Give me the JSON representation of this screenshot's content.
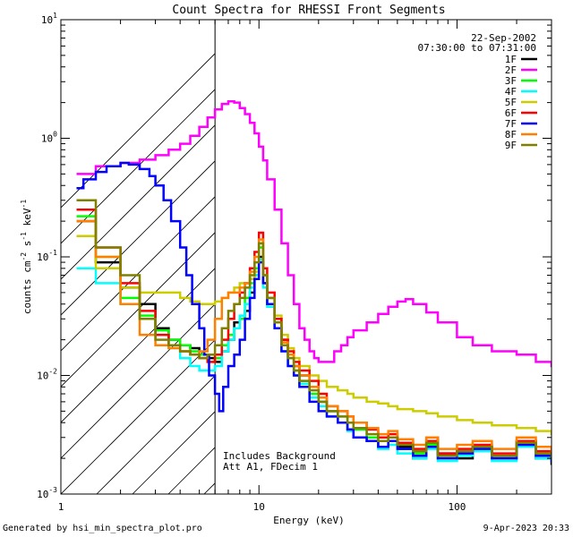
{
  "chart_data": {
    "type": "line",
    "title": "Count Spectra for RHESSI Front Segments",
    "xlabel": "Energy (keV)",
    "ylabel_parts": {
      "a": "counts cm",
      "b": "-2",
      "c": " s",
      "d": "-1",
      "e": " keV",
      "f": "-1"
    },
    "xlim": [
      1,
      300
    ],
    "ylim": [
      0.001,
      10
    ],
    "x_scale": "log",
    "y_scale": "log",
    "x_ticks": [
      {
        "v": 1,
        "label": "1"
      },
      {
        "v": 10,
        "label": "10"
      },
      {
        "v": 100,
        "label": "100"
      }
    ],
    "y_ticks": [
      {
        "v": 0.001,
        "base": "10",
        "exp": "-3"
      },
      {
        "v": 0.01,
        "base": "10",
        "exp": "-2"
      },
      {
        "v": 0.1,
        "base": "10",
        "exp": "-1"
      },
      {
        "v": 1,
        "base": "10",
        "exp": "0"
      },
      {
        "v": 10,
        "base": "10",
        "exp": "1"
      }
    ],
    "hatched_region": [
      1,
      6
    ],
    "date": "22-Sep-2002",
    "time_range": "07:30:00 to 07:31:00",
    "annotation": [
      "Includes Background",
      "Att A1, FDecim 1"
    ],
    "series": [
      {
        "name": "1F",
        "color": "#000000",
        "x": [
          1.2,
          1.5,
          2,
          2.5,
          3,
          3.5,
          4,
          4.5,
          5,
          5.5,
          6,
          6.5,
          7,
          7.5,
          8,
          8.5,
          9,
          9.5,
          10,
          10.5,
          11,
          12,
          13,
          14,
          15,
          16,
          18,
          20,
          22,
          25,
          28,
          30,
          35,
          40,
          45,
          50,
          60,
          70,
          80,
          100,
          120,
          150,
          200,
          250,
          300
        ],
        "y": [
          0.2,
          0.09,
          0.055,
          0.04,
          0.025,
          0.02,
          0.018,
          0.017,
          0.015,
          0.014,
          0.013,
          0.016,
          0.02,
          0.028,
          0.03,
          0.035,
          0.05,
          0.07,
          0.1,
          0.06,
          0.04,
          0.025,
          0.02,
          0.015,
          0.012,
          0.01,
          0.008,
          0.006,
          0.005,
          0.004,
          0.0035,
          0.003,
          0.0028,
          0.0025,
          0.003,
          0.0025,
          0.002,
          0.003,
          0.0022,
          0.002,
          0.0025,
          0.002,
          0.0028,
          0.002,
          0.0018
        ]
      },
      {
        "name": "2F",
        "color": "#ff00ff",
        "x": [
          1.2,
          1.5,
          2,
          2.5,
          3,
          3.5,
          4,
          4.5,
          5,
          5.5,
          6,
          6.5,
          7,
          7.5,
          8,
          8.5,
          9,
          9.5,
          10,
          10.5,
          11,
          12,
          13,
          14,
          15,
          16,
          17,
          18,
          19,
          20,
          22,
          24,
          26,
          28,
          30,
          35,
          40,
          45,
          50,
          55,
          60,
          70,
          80,
          100,
          120,
          150,
          200,
          250,
          300
        ],
        "y": [
          0.5,
          0.58,
          0.62,
          0.66,
          0.72,
          0.8,
          0.9,
          1.05,
          1.25,
          1.5,
          1.75,
          1.95,
          2.05,
          2.0,
          1.8,
          1.6,
          1.35,
          1.1,
          0.85,
          0.65,
          0.45,
          0.25,
          0.13,
          0.07,
          0.04,
          0.025,
          0.02,
          0.016,
          0.014,
          0.013,
          0.013,
          0.016,
          0.018,
          0.021,
          0.024,
          0.028,
          0.033,
          0.038,
          0.042,
          0.044,
          0.04,
          0.034,
          0.028,
          0.021,
          0.018,
          0.016,
          0.015,
          0.013,
          0.012
        ]
      },
      {
        "name": "3F",
        "color": "#00ff00",
        "x": [
          1.2,
          1.5,
          2,
          2.5,
          3,
          3.5,
          4,
          4.5,
          5,
          5.5,
          6,
          6.5,
          7,
          7.5,
          8,
          8.5,
          9,
          9.5,
          10,
          10.5,
          11,
          12,
          13,
          14,
          15,
          16,
          18,
          20,
          22,
          25,
          28,
          30,
          35,
          40,
          45,
          50,
          60,
          70,
          80,
          100,
          120,
          150,
          200,
          250,
          300
        ],
        "y": [
          0.22,
          0.1,
          0.045,
          0.032,
          0.024,
          0.02,
          0.018,
          0.016,
          0.015,
          0.013,
          0.014,
          0.018,
          0.022,
          0.025,
          0.03,
          0.045,
          0.06,
          0.08,
          0.12,
          0.07,
          0.045,
          0.03,
          0.018,
          0.014,
          0.011,
          0.009,
          0.007,
          0.006,
          0.005,
          0.0045,
          0.004,
          0.0035,
          0.003,
          0.0028,
          0.003,
          0.0024,
          0.0022,
          0.0026,
          0.002,
          0.0022,
          0.0024,
          0.002,
          0.0026,
          0.0022,
          0.002
        ]
      },
      {
        "name": "4F",
        "color": "#00ffff",
        "x": [
          1.2,
          1.5,
          2,
          2.5,
          3,
          3.5,
          4,
          4.5,
          5,
          5.5,
          6,
          6.5,
          7,
          7.5,
          8,
          8.5,
          9,
          9.5,
          10,
          10.5,
          11,
          12,
          13,
          14,
          15,
          16,
          18,
          20,
          22,
          25,
          28,
          30,
          35,
          40,
          45,
          50,
          60,
          70,
          80,
          100,
          120,
          150,
          200,
          250,
          300
        ],
        "y": [
          0.08,
          0.06,
          0.04,
          0.03,
          0.022,
          0.017,
          0.014,
          0.012,
          0.011,
          0.011,
          0.012,
          0.016,
          0.02,
          0.025,
          0.032,
          0.04,
          0.055,
          0.07,
          0.095,
          0.055,
          0.038,
          0.025,
          0.016,
          0.012,
          0.01,
          0.0085,
          0.0065,
          0.0055,
          0.0045,
          0.004,
          0.0034,
          0.003,
          0.0028,
          0.0024,
          0.0026,
          0.0022,
          0.002,
          0.0024,
          0.0019,
          0.0021,
          0.0023,
          0.0019,
          0.0025,
          0.002,
          0.0019
        ]
      },
      {
        "name": "5F",
        "color": "#cccc00",
        "x": [
          1.2,
          1.5,
          2,
          2.5,
          3,
          3.5,
          4,
          4.5,
          5,
          5.5,
          6,
          6.5,
          7,
          7.5,
          8,
          8.5,
          9,
          9.5,
          10,
          10.5,
          11,
          12,
          13,
          14,
          15,
          16,
          18,
          20,
          22,
          25,
          28,
          30,
          35,
          40,
          45,
          50,
          60,
          70,
          80,
          100,
          120,
          150,
          200,
          250,
          300
        ],
        "y": [
          0.15,
          0.08,
          0.055,
          0.05,
          0.05,
          0.05,
          0.045,
          0.042,
          0.04,
          0.04,
          0.042,
          0.045,
          0.05,
          0.055,
          0.06,
          0.06,
          0.065,
          0.075,
          0.09,
          0.06,
          0.045,
          0.032,
          0.022,
          0.017,
          0.014,
          0.012,
          0.01,
          0.009,
          0.008,
          0.0075,
          0.007,
          0.0065,
          0.006,
          0.0058,
          0.0055,
          0.0052,
          0.005,
          0.0048,
          0.0045,
          0.0042,
          0.004,
          0.0038,
          0.0036,
          0.0034,
          0.0032
        ]
      },
      {
        "name": "6F",
        "color": "#ff0000",
        "x": [
          1.2,
          1.5,
          2,
          2.5,
          3,
          3.5,
          4,
          4.5,
          5,
          5.5,
          6,
          6.5,
          7,
          7.5,
          8,
          8.5,
          9,
          9.5,
          10,
          10.5,
          11,
          12,
          13,
          14,
          15,
          16,
          18,
          20,
          22,
          25,
          28,
          30,
          35,
          40,
          45,
          50,
          60,
          70,
          80,
          100,
          120,
          150,
          200,
          250,
          300
        ],
        "y": [
          0.25,
          0.12,
          0.06,
          0.035,
          0.022,
          0.018,
          0.016,
          0.015,
          0.014,
          0.013,
          0.015,
          0.02,
          0.03,
          0.04,
          0.05,
          0.06,
          0.08,
          0.11,
          0.16,
          0.08,
          0.05,
          0.03,
          0.02,
          0.016,
          0.013,
          0.011,
          0.009,
          0.007,
          0.0055,
          0.005,
          0.0045,
          0.004,
          0.0035,
          0.003,
          0.0032,
          0.0027,
          0.0024,
          0.0028,
          0.0022,
          0.0024,
          0.0026,
          0.0022,
          0.0028,
          0.0023,
          0.0021
        ]
      },
      {
        "name": "7F",
        "color": "#0000ff",
        "x": [
          1.2,
          1.3,
          1.5,
          1.7,
          2,
          2.2,
          2.5,
          2.8,
          3,
          3.3,
          3.6,
          4,
          4.3,
          4.6,
          5,
          5.3,
          5.6,
          6,
          6.3,
          6.6,
          7,
          7.5,
          8,
          8.5,
          9,
          9.5,
          10,
          10.5,
          11,
          12,
          13,
          14,
          15,
          16,
          18,
          20,
          22,
          25,
          28,
          30,
          35,
          40,
          45,
          50,
          60,
          70,
          80,
          100,
          120,
          150,
          200,
          250,
          300
        ],
        "y": [
          0.38,
          0.45,
          0.52,
          0.58,
          0.62,
          0.6,
          0.55,
          0.48,
          0.4,
          0.3,
          0.2,
          0.12,
          0.07,
          0.04,
          0.025,
          0.015,
          0.01,
          0.007,
          0.005,
          0.008,
          0.012,
          0.015,
          0.02,
          0.03,
          0.045,
          0.065,
          0.09,
          0.06,
          0.04,
          0.025,
          0.016,
          0.012,
          0.01,
          0.008,
          0.006,
          0.005,
          0.0045,
          0.004,
          0.0035,
          0.003,
          0.0028,
          0.0025,
          0.0028,
          0.0024,
          0.0021,
          0.0025,
          0.002,
          0.0022,
          0.0024,
          0.002,
          0.0026,
          0.0021,
          0.0019
        ]
      },
      {
        "name": "8F",
        "color": "#ff8000",
        "x": [
          1.2,
          1.5,
          2,
          2.5,
          3,
          3.5,
          4,
          4.5,
          5,
          5.5,
          6,
          6.5,
          7,
          7.5,
          8,
          8.5,
          9,
          9.5,
          10,
          10.5,
          11,
          12,
          13,
          14,
          15,
          16,
          18,
          20,
          22,
          25,
          28,
          30,
          35,
          40,
          45,
          50,
          60,
          70,
          80,
          100,
          120,
          150,
          200,
          250,
          300
        ],
        "y": [
          0.2,
          0.1,
          0.04,
          0.022,
          0.018,
          0.017,
          0.016,
          0.015,
          0.016,
          0.02,
          0.03,
          0.045,
          0.05,
          0.05,
          0.055,
          0.06,
          0.075,
          0.1,
          0.14,
          0.07,
          0.045,
          0.028,
          0.019,
          0.015,
          0.012,
          0.01,
          0.008,
          0.0065,
          0.0055,
          0.005,
          0.0045,
          0.004,
          0.0036,
          0.0032,
          0.0034,
          0.0029,
          0.0026,
          0.003,
          0.0024,
          0.0026,
          0.0028,
          0.0024,
          0.003,
          0.0025,
          0.0023
        ]
      },
      {
        "name": "9F",
        "color": "#808000",
        "x": [
          1.2,
          1.5,
          2,
          2.5,
          3,
          3.5,
          4,
          4.5,
          5,
          5.5,
          6,
          6.5,
          7,
          7.5,
          8,
          8.5,
          9,
          9.5,
          10,
          10.5,
          11,
          12,
          13,
          14,
          15,
          16,
          18,
          20,
          22,
          25,
          28,
          30,
          35,
          40,
          45,
          50,
          60,
          70,
          80,
          100,
          120,
          150,
          200,
          250,
          300
        ],
        "y": [
          0.3,
          0.12,
          0.07,
          0.03,
          0.02,
          0.018,
          0.016,
          0.015,
          0.014,
          0.015,
          0.018,
          0.025,
          0.035,
          0.04,
          0.045,
          0.055,
          0.07,
          0.09,
          0.13,
          0.07,
          0.045,
          0.028,
          0.018,
          0.014,
          0.011,
          0.009,
          0.0075,
          0.006,
          0.005,
          0.0045,
          0.004,
          0.0036,
          0.0032,
          0.0028,
          0.003,
          0.0026,
          0.0023,
          0.0027,
          0.0021,
          0.0023,
          0.0025,
          0.0021,
          0.0027,
          0.0022,
          0.002
        ]
      }
    ]
  },
  "footer": {
    "generated_by": "Generated by hsi_min_spectra_plot.pro",
    "timestamp": "9-Apr-2023 20:33"
  }
}
